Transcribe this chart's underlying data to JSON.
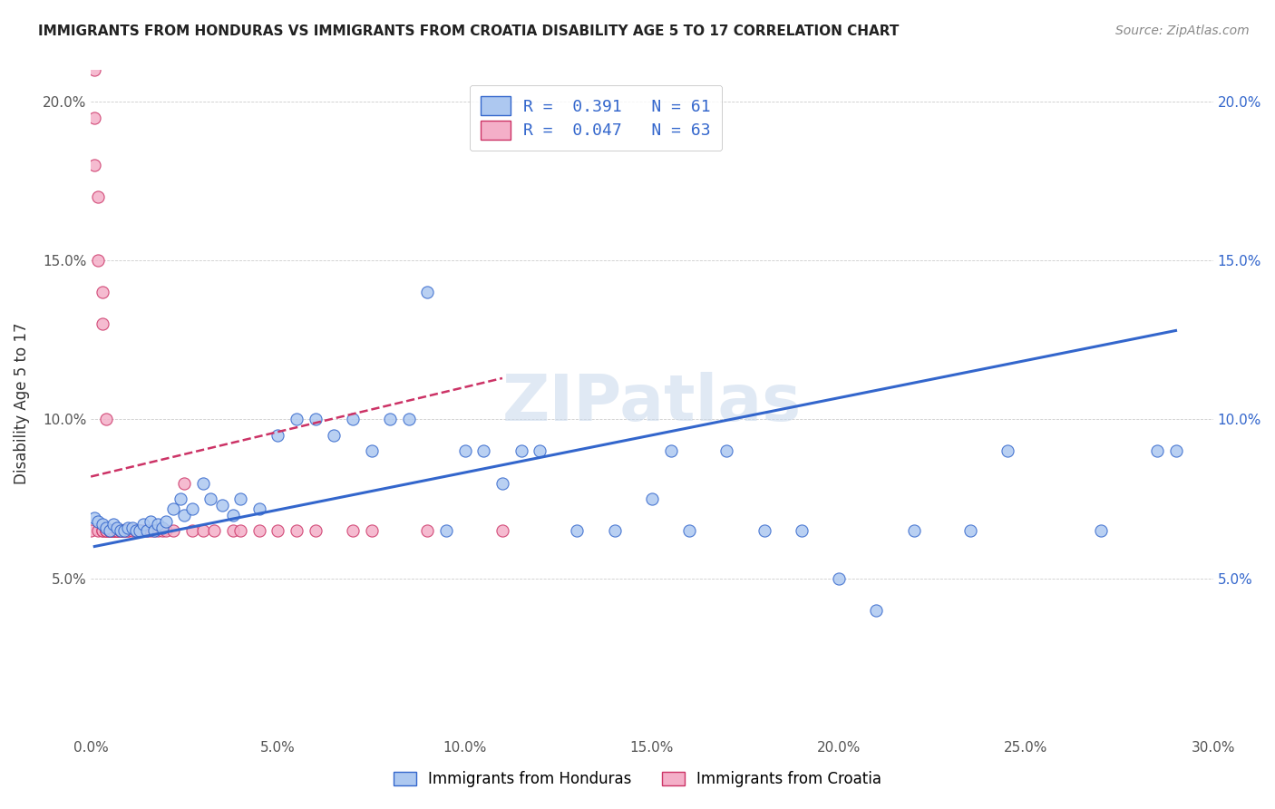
{
  "title": "IMMIGRANTS FROM HONDURAS VS IMMIGRANTS FROM CROATIA DISABILITY AGE 5 TO 17 CORRELATION CHART",
  "source": "Source: ZipAtlas.com",
  "ylabel": "Disability Age 5 to 17",
  "xlim": [
    0.0,
    0.3
  ],
  "ylim": [
    0.0,
    0.21
  ],
  "x_ticks": [
    0.0,
    0.05,
    0.1,
    0.15,
    0.2,
    0.25,
    0.3
  ],
  "x_tick_labels": [
    "0.0%",
    "5.0%",
    "10.0%",
    "15.0%",
    "20.0%",
    "25.0%",
    "30.0%"
  ],
  "y_ticks": [
    0.0,
    0.05,
    0.1,
    0.15,
    0.2
  ],
  "y_tick_labels_left": [
    "",
    "5.0%",
    "10.0%",
    "15.0%",
    "20.0%"
  ],
  "y_tick_labels_right": [
    "",
    "5.0%",
    "10.0%",
    "15.0%",
    "20.0%"
  ],
  "legend_R1": "0.391",
  "legend_N1": "61",
  "legend_R2": "0.047",
  "legend_N2": "63",
  "color_honduras": "#adc8f0",
  "color_croatia": "#f4afc8",
  "line_color_honduras": "#3366cc",
  "line_color_croatia": "#cc3366",
  "watermark": "ZIPatlas",
  "honduras_x": [
    0.001,
    0.002,
    0.003,
    0.004,
    0.005,
    0.006,
    0.007,
    0.008,
    0.009,
    0.01,
    0.011,
    0.012,
    0.013,
    0.014,
    0.015,
    0.016,
    0.017,
    0.018,
    0.019,
    0.02,
    0.022,
    0.024,
    0.025,
    0.027,
    0.03,
    0.032,
    0.035,
    0.038,
    0.04,
    0.045,
    0.05,
    0.055,
    0.06,
    0.065,
    0.07,
    0.075,
    0.08,
    0.085,
    0.09,
    0.095,
    0.1,
    0.105,
    0.11,
    0.115,
    0.12,
    0.13,
    0.14,
    0.15,
    0.155,
    0.16,
    0.17,
    0.18,
    0.19,
    0.2,
    0.21,
    0.22,
    0.235,
    0.245,
    0.27,
    0.285,
    0.29
  ],
  "honduras_y": [
    0.069,
    0.068,
    0.067,
    0.066,
    0.065,
    0.067,
    0.066,
    0.065,
    0.065,
    0.066,
    0.066,
    0.065,
    0.065,
    0.067,
    0.065,
    0.068,
    0.065,
    0.067,
    0.066,
    0.068,
    0.072,
    0.075,
    0.07,
    0.072,
    0.08,
    0.075,
    0.073,
    0.07,
    0.075,
    0.072,
    0.095,
    0.1,
    0.1,
    0.095,
    0.1,
    0.09,
    0.1,
    0.1,
    0.14,
    0.065,
    0.09,
    0.09,
    0.08,
    0.09,
    0.09,
    0.065,
    0.065,
    0.075,
    0.09,
    0.065,
    0.09,
    0.065,
    0.065,
    0.05,
    0.04,
    0.065,
    0.065,
    0.09,
    0.065,
    0.09,
    0.09
  ],
  "croatia_x": [
    0.0,
    0.001,
    0.001,
    0.001,
    0.002,
    0.002,
    0.002,
    0.003,
    0.003,
    0.003,
    0.003,
    0.004,
    0.004,
    0.004,
    0.004,
    0.005,
    0.005,
    0.005,
    0.005,
    0.005,
    0.006,
    0.006,
    0.006,
    0.006,
    0.007,
    0.007,
    0.007,
    0.007,
    0.008,
    0.008,
    0.008,
    0.009,
    0.009,
    0.009,
    0.01,
    0.01,
    0.011,
    0.012,
    0.012,
    0.013,
    0.013,
    0.014,
    0.015,
    0.016,
    0.017,
    0.018,
    0.019,
    0.02,
    0.022,
    0.025,
    0.027,
    0.03,
    0.033,
    0.038,
    0.04,
    0.045,
    0.05,
    0.055,
    0.06,
    0.07,
    0.075,
    0.09,
    0.11
  ],
  "croatia_y": [
    0.065,
    0.21,
    0.195,
    0.18,
    0.17,
    0.065,
    0.15,
    0.14,
    0.13,
    0.065,
    0.065,
    0.1,
    0.065,
    0.065,
    0.065,
    0.065,
    0.065,
    0.065,
    0.065,
    0.065,
    0.065,
    0.065,
    0.065,
    0.065,
    0.065,
    0.065,
    0.065,
    0.065,
    0.065,
    0.065,
    0.065,
    0.065,
    0.065,
    0.065,
    0.065,
    0.065,
    0.065,
    0.065,
    0.065,
    0.065,
    0.065,
    0.065,
    0.065,
    0.065,
    0.065,
    0.065,
    0.065,
    0.065,
    0.065,
    0.08,
    0.065,
    0.065,
    0.065,
    0.065,
    0.065,
    0.065,
    0.065,
    0.065,
    0.065,
    0.065,
    0.065,
    0.065,
    0.065
  ],
  "honduras_line_x": [
    0.001,
    0.29
  ],
  "honduras_line_y": [
    0.06,
    0.128
  ],
  "croatia_line_x": [
    0.0,
    0.11
  ],
  "croatia_line_y": [
    0.082,
    0.113
  ]
}
